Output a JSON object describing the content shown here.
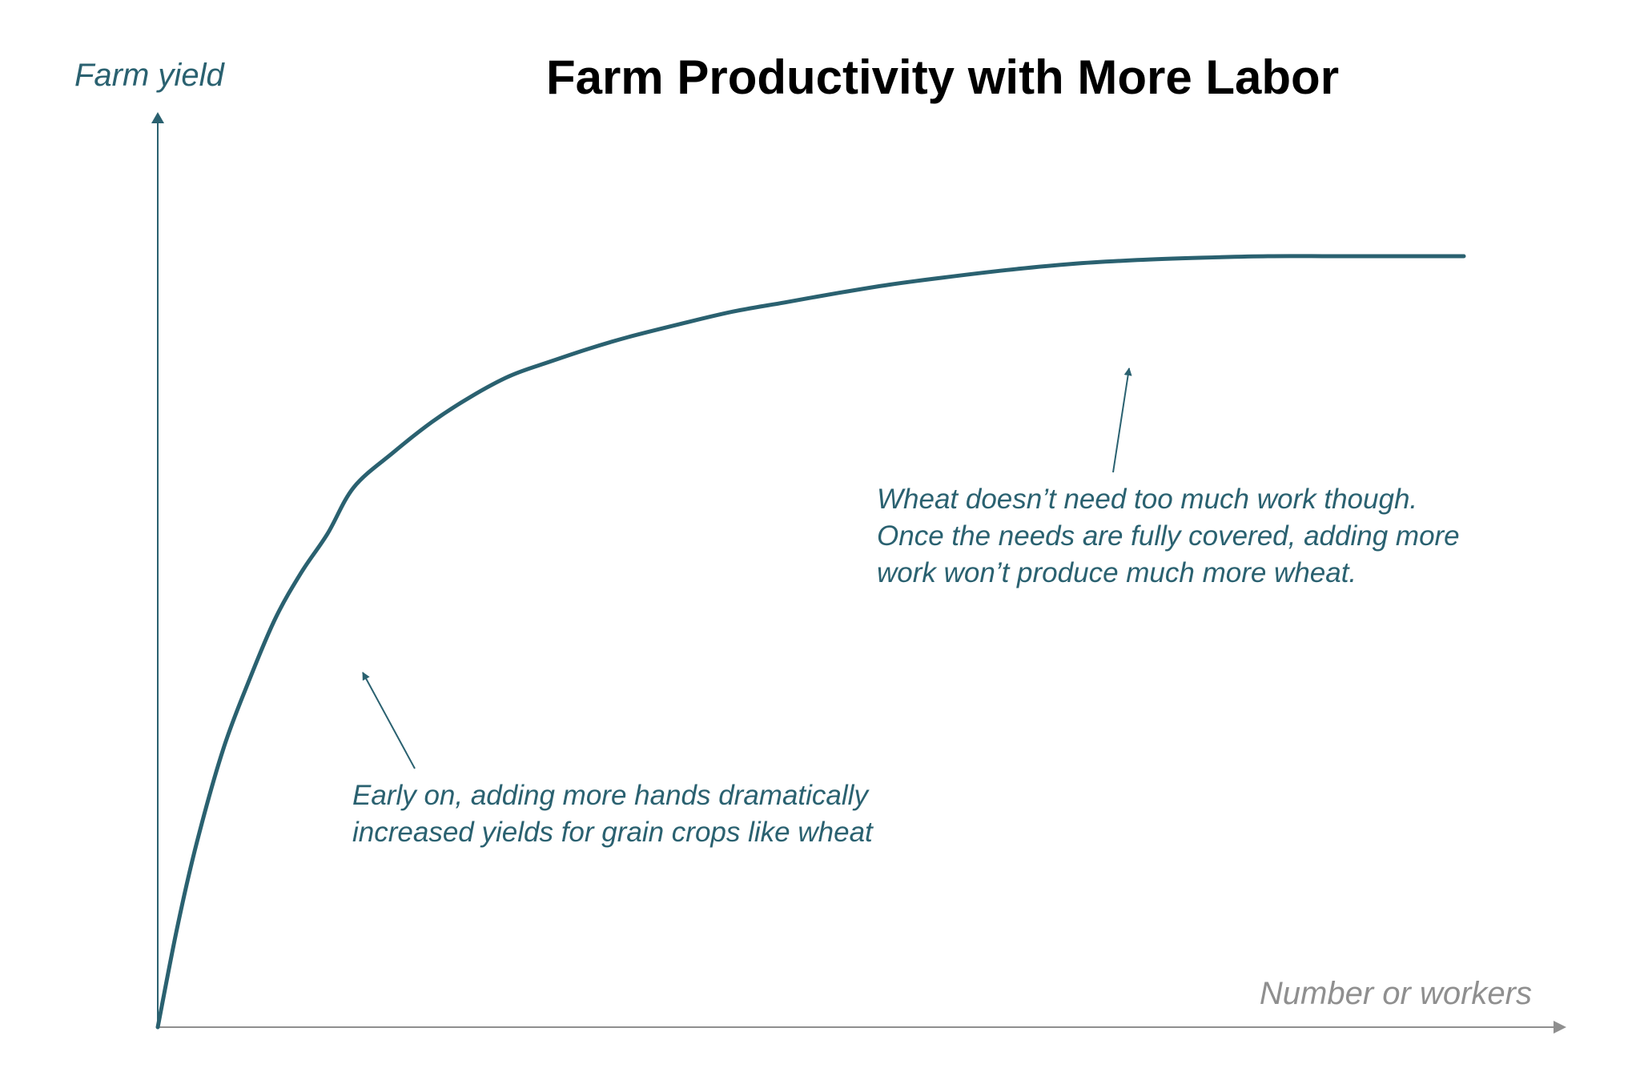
{
  "chart_data": {
    "type": "line",
    "title": "Farm Productivity with More Labor",
    "xlabel": "Number or workers",
    "ylabel": "Farm yield",
    "xlim": [
      0,
      100
    ],
    "ylim": [
      0,
      100
    ],
    "grid": false,
    "legend": "none",
    "x_ticks_shown": false,
    "y_ticks_shown": false,
    "series": [
      {
        "x": [
          0,
          1.5,
          3,
          5,
          7,
          9,
          11,
          13,
          15,
          18,
          21,
          24,
          27,
          30,
          33,
          36,
          40,
          44,
          48,
          52,
          56,
          60,
          65,
          70,
          75,
          80,
          85,
          90,
          95,
          100
        ],
        "values": [
          0,
          13,
          24,
          36,
          45,
          53,
          59,
          64,
          70,
          74.5,
          78.5,
          81.8,
          84.5,
          86.3,
          88,
          89.5,
          91.2,
          92.8,
          94,
          95.2,
          96.3,
          97.2,
          98.2,
          99,
          99.5,
          99.8,
          100,
          100,
          100,
          100
        ]
      }
    ],
    "annotations": [
      {
        "lines": [
          "Early on, adding more hands dramatically",
          "increased yields for grain crops like wheat"
        ]
      },
      {
        "lines": [
          "Wheat doesn’t need too much work though.",
          "Once the needs are fully covered, adding more",
          "work won’t produce much more wheat."
        ]
      }
    ]
  },
  "colors": {
    "curve": "#2a6170",
    "axis_y": "#2a6170",
    "axis_x": "#8f8f8f",
    "annotation": "#2a6170",
    "xlabel": "#8f8f8f",
    "ylabel": "#2a6170",
    "title": "#000000"
  }
}
